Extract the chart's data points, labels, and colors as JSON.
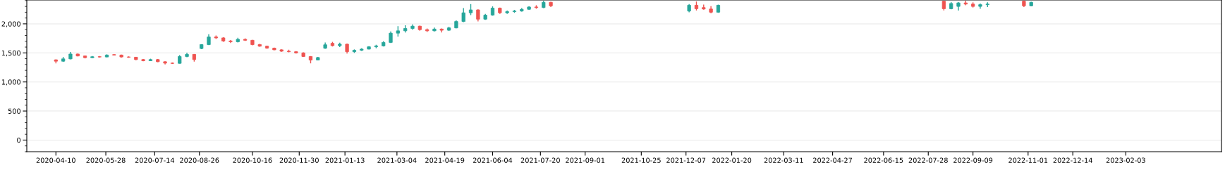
{
  "chart_data": {
    "type": "candlestick",
    "x": [
      "2020-04-10",
      "2020-04-17",
      "2020-04-24",
      "2020-05-01",
      "2020-05-08",
      "2020-05-15",
      "2020-05-22",
      "2020-05-29",
      "2020-06-05",
      "2020-06-12",
      "2020-06-19",
      "2020-06-26",
      "2020-07-03",
      "2020-07-10",
      "2020-07-17",
      "2020-07-24",
      "2020-07-31",
      "2020-08-07",
      "2020-08-14",
      "2020-08-21",
      "2020-08-28",
      "2020-09-04",
      "2020-09-11",
      "2020-09-18",
      "2020-09-25",
      "2020-10-02",
      "2020-10-09",
      "2020-10-16",
      "2020-10-23",
      "2020-10-30",
      "2020-11-06",
      "2020-11-13",
      "2020-11-20",
      "2020-11-27",
      "2020-12-04",
      "2020-12-11",
      "2020-12-18",
      "2020-12-25",
      "2021-01-01",
      "2021-01-08",
      "2021-01-15",
      "2021-01-22",
      "2021-01-29",
      "2021-02-05",
      "2021-02-12",
      "2021-02-19",
      "2021-02-26",
      "2021-03-05",
      "2021-03-12",
      "2021-03-19",
      "2021-03-26",
      "2021-04-02",
      "2021-04-09",
      "2021-04-16",
      "2021-04-23",
      "2021-04-30",
      "2021-05-07",
      "2021-05-14",
      "2021-05-21",
      "2021-05-28",
      "2021-06-04",
      "2021-06-11",
      "2021-06-18",
      "2021-06-25",
      "2021-07-02",
      "2021-07-09",
      "2021-07-16",
      "2021-07-23",
      "2021-07-30",
      "2021-12-10",
      "2021-12-17",
      "2021-12-24",
      "2021-12-31",
      "2022-01-07",
      "2022-08-12",
      "2022-08-19",
      "2022-08-26",
      "2022-09-02",
      "2022-09-09",
      "2022-09-16",
      "2022-09-23",
      "2022-10-28",
      "2022-11-04"
    ],
    "ohlc": [
      [
        1380,
        1390,
        1320,
        1357
      ],
      [
        1357,
        1430,
        1345,
        1397
      ],
      [
        1397,
        1515,
        1390,
        1480
      ],
      [
        1480,
        1490,
        1440,
        1447
      ],
      [
        1447,
        1455,
        1405,
        1418
      ],
      [
        1418,
        1445,
        1410,
        1434
      ],
      [
        1434,
        1445,
        1420,
        1430
      ],
      [
        1430,
        1475,
        1425,
        1463
      ],
      [
        1470,
        1480,
        1455,
        1463
      ],
      [
        1463,
        1470,
        1420,
        1430
      ],
      [
        1430,
        1440,
        1415,
        1426
      ],
      [
        1426,
        1430,
        1375,
        1385
      ],
      [
        1385,
        1395,
        1355,
        1365
      ],
      [
        1365,
        1400,
        1360,
        1385
      ],
      [
        1385,
        1395,
        1340,
        1348
      ],
      [
        1348,
        1355,
        1300,
        1324
      ],
      [
        1324,
        1335,
        1310,
        1320
      ],
      [
        1320,
        1460,
        1315,
        1438
      ],
      [
        1438,
        1505,
        1425,
        1475
      ],
      [
        1475,
        1480,
        1350,
        1385
      ],
      [
        1575,
        1650,
        1565,
        1643
      ],
      [
        1643,
        1820,
        1635,
        1774
      ],
      [
        1774,
        1800,
        1740,
        1758
      ],
      [
        1758,
        1770,
        1690,
        1705
      ],
      [
        1705,
        1720,
        1670,
        1692
      ],
      [
        1692,
        1760,
        1680,
        1733
      ],
      [
        1733,
        1750,
        1705,
        1717
      ],
      [
        1717,
        1725,
        1630,
        1643
      ],
      [
        1643,
        1655,
        1605,
        1615
      ],
      [
        1615,
        1625,
        1570,
        1582
      ],
      [
        1582,
        1590,
        1545,
        1553
      ],
      [
        1553,
        1560,
        1520,
        1529
      ],
      [
        1529,
        1555,
        1510,
        1520
      ],
      [
        1520,
        1530,
        1490,
        1500
      ],
      [
        1500,
        1510,
        1430,
        1438
      ],
      [
        1438,
        1445,
        1320,
        1377
      ],
      [
        1377,
        1430,
        1370,
        1420
      ],
      [
        1580,
        1680,
        1570,
        1640
      ],
      [
        1665,
        1690,
        1610,
        1625
      ],
      [
        1625,
        1675,
        1600,
        1650
      ],
      [
        1650,
        1660,
        1490,
        1520
      ],
      [
        1520,
        1560,
        1500,
        1545
      ],
      [
        1545,
        1580,
        1535,
        1565
      ],
      [
        1565,
        1615,
        1560,
        1605
      ],
      [
        1605,
        1640,
        1580,
        1620
      ],
      [
        1620,
        1700,
        1610,
        1680
      ],
      [
        1680,
        1870,
        1670,
        1840
      ],
      [
        1840,
        1960,
        1780,
        1880
      ],
      [
        1880,
        1975,
        1850,
        1920
      ],
      [
        1920,
        1990,
        1900,
        1960
      ],
      [
        1960,
        1970,
        1880,
        1900
      ],
      [
        1900,
        1920,
        1860,
        1880
      ],
      [
        1880,
        1935,
        1870,
        1910
      ],
      [
        1910,
        1920,
        1850,
        1890
      ],
      [
        1890,
        1950,
        1880,
        1930
      ],
      [
        1930,
        2060,
        1925,
        2040
      ],
      [
        2040,
        2270,
        2030,
        2190
      ],
      [
        2190,
        2340,
        2150,
        2240
      ],
      [
        2240,
        2250,
        2040,
        2080
      ],
      [
        2080,
        2170,
        2070,
        2150
      ],
      [
        2150,
        2300,
        2140,
        2270
      ],
      [
        2270,
        2280,
        2170,
        2190
      ],
      [
        2190,
        2230,
        2170,
        2210
      ],
      [
        2210,
        2240,
        2190,
        2220
      ],
      [
        2220,
        2270,
        2210,
        2250
      ],
      [
        2250,
        2300,
        2240,
        2290
      ],
      [
        2290,
        2320,
        2260,
        2280
      ],
      [
        2280,
        2395,
        2270,
        2370
      ],
      [
        2370,
        2380,
        2290,
        2310
      ],
      [
        2220,
        2340,
        2200,
        2320
      ],
      [
        2320,
        2384,
        2230,
        2260
      ],
      [
        2280,
        2330,
        2245,
        2255
      ],
      [
        2255,
        2305,
        2180,
        2200
      ],
      [
        2200,
        2330,
        2190,
        2320
      ],
      [
        2390,
        2398,
        2230,
        2260
      ],
      [
        2260,
        2374,
        2250,
        2350
      ],
      [
        2300,
        2374,
        2230,
        2360
      ],
      [
        2360,
        2398,
        2320,
        2340
      ],
      [
        2340,
        2370,
        2280,
        2300
      ],
      [
        2300,
        2350,
        2260,
        2330
      ],
      [
        2330,
        2370,
        2290,
        2340
      ],
      [
        2390,
        2400,
        2290,
        2310
      ],
      [
        2310,
        2380,
        2300,
        2370
      ]
    ],
    "colors": [
      "#ef5350",
      "#26a69a",
      "#26a69a",
      "#ef5350",
      "#ef5350",
      "#26a69a",
      "#ef5350",
      "#26a69a",
      "#ef5350",
      "#ef5350",
      "#ef5350",
      "#ef5350",
      "#ef5350",
      "#26a69a",
      "#ef5350",
      "#ef5350",
      "#ef5350",
      "#26a69a",
      "#26a69a",
      "#ef5350",
      "#26a69a",
      "#26a69a",
      "#ef5350",
      "#ef5350",
      "#ef5350",
      "#26a69a",
      "#ef5350",
      "#ef5350",
      "#ef5350",
      "#ef5350",
      "#ef5350",
      "#ef5350",
      "#ef5350",
      "#ef5350",
      "#ef5350",
      "#ef5350",
      "#26a69a",
      "#26a69a",
      "#ef5350",
      "#26a69a",
      "#ef5350",
      "#26a69a",
      "#26a69a",
      "#26a69a",
      "#26a69a",
      "#26a69a",
      "#26a69a",
      "#26a69a",
      "#26a69a",
      "#26a69a",
      "#ef5350",
      "#ef5350",
      "#26a69a",
      "#ef5350",
      "#26a69a",
      "#26a69a",
      "#26a69a",
      "#26a69a",
      "#ef5350",
      "#26a69a",
      "#26a69a",
      "#ef5350",
      "#26a69a",
      "#26a69a",
      "#26a69a",
      "#26a69a",
      "#ef5350",
      "#26a69a",
      "#ef5350",
      "#26a69a",
      "#ef5350",
      "#ef5350",
      "#ef5350",
      "#26a69a",
      "#ef5350",
      "#26a69a",
      "#26a69a",
      "#ef5350",
      "#ef5350",
      "#26a69a",
      "#26a69a",
      "#ef5350",
      "#26a69a"
    ],
    "xlim": [
      "2020-03-13",
      "2023-05-06"
    ],
    "xticks": [
      "2020-04-10",
      "2020-05-28",
      "2020-07-14",
      "2020-08-26",
      "2020-10-16",
      "2020-11-30",
      "2021-01-13",
      "2021-03-04",
      "2021-04-19",
      "2021-06-04",
      "2021-07-20",
      "2021-09-01",
      "2021-10-25",
      "2021-12-07",
      "2022-01-20",
      "2022-03-11",
      "2022-04-27",
      "2022-06-15",
      "2022-07-28",
      "2022-09-09",
      "2022-11-01",
      "2022-12-14",
      "2023-02-03"
    ],
    "ylim": [
      -200,
      2410
    ],
    "yticks": [
      {
        "value": -100,
        "label": null
      },
      {
        "value": 0,
        "label": "0"
      },
      {
        "value": 100,
        "label": null
      },
      {
        "value": 200,
        "label": null
      },
      {
        "value": 300,
        "label": null
      },
      {
        "value": 400,
        "label": null
      },
      {
        "value": 500,
        "label": "500"
      },
      {
        "value": 600,
        "label": null
      },
      {
        "value": 700,
        "label": null
      },
      {
        "value": 800,
        "label": null
      },
      {
        "value": 900,
        "label": null
      },
      {
        "value": 1000,
        "label": "1,000"
      },
      {
        "value": 1100,
        "label": null
      },
      {
        "value": 1200,
        "label": null
      },
      {
        "value": 1300,
        "label": null
      },
      {
        "value": 1400,
        "label": null
      },
      {
        "value": 1500,
        "label": "1,500"
      },
      {
        "value": 1600,
        "label": null
      },
      {
        "value": 1700,
        "label": null
      },
      {
        "value": 1800,
        "label": null
      },
      {
        "value": 1900,
        "label": null
      },
      {
        "value": 2000,
        "label": "2,000"
      },
      {
        "value": 2100,
        "label": null
      },
      {
        "value": 2200,
        "label": null
      },
      {
        "value": 2300,
        "label": null
      },
      {
        "value": 2400,
        "label": null
      }
    ],
    "grid": "y"
  }
}
